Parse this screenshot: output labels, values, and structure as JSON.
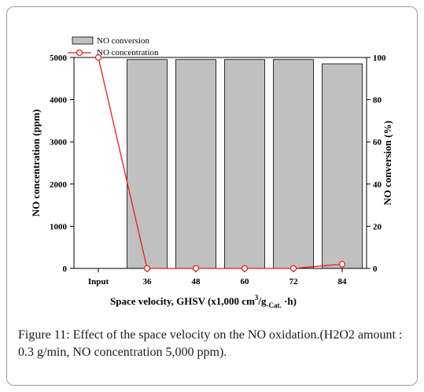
{
  "chart_data": {
    "type": "bar",
    "categories": [
      "Input",
      "36",
      "48",
      "60",
      "72",
      "84"
    ],
    "series": [
      {
        "name": "NO conversion",
        "kind": "bar",
        "axis": "right",
        "values": [
          null,
          99,
          99,
          99,
          99,
          97
        ],
        "color": "#c0c0c0"
      },
      {
        "name": "NO concentration",
        "kind": "line",
        "axis": "left",
        "values": [
          5000,
          0,
          0,
          0,
          0,
          100
        ],
        "color": "#e0201e"
      }
    ],
    "xlabel": "Space velocity, GHSV (x1,000 cm",
    "xlabel_sup": "3",
    "xlabel_mid": "/g",
    "xlabel_sub": "-Cat.",
    "xlabel_tail": " ·h)",
    "ylabel_left": "NO concentration (ppm)",
    "ylabel_right": "NO conversion (%)",
    "ylim_left": [
      0,
      5000
    ],
    "yticks_left": [
      "0",
      "1000",
      "2000",
      "3000",
      "4000",
      "5000"
    ],
    "ylim_right": [
      0,
      100
    ],
    "yticks_right": [
      "0",
      "20",
      "40",
      "60",
      "80",
      "100"
    ],
    "legend_position": "top-left",
    "grid": false
  },
  "caption": {
    "label": "Figure 11:",
    "text": " Effect of the space velocity on the NO oxidation.(H2O2 amount : 0.3 g/min, NO concentration 5,000 ppm)."
  }
}
